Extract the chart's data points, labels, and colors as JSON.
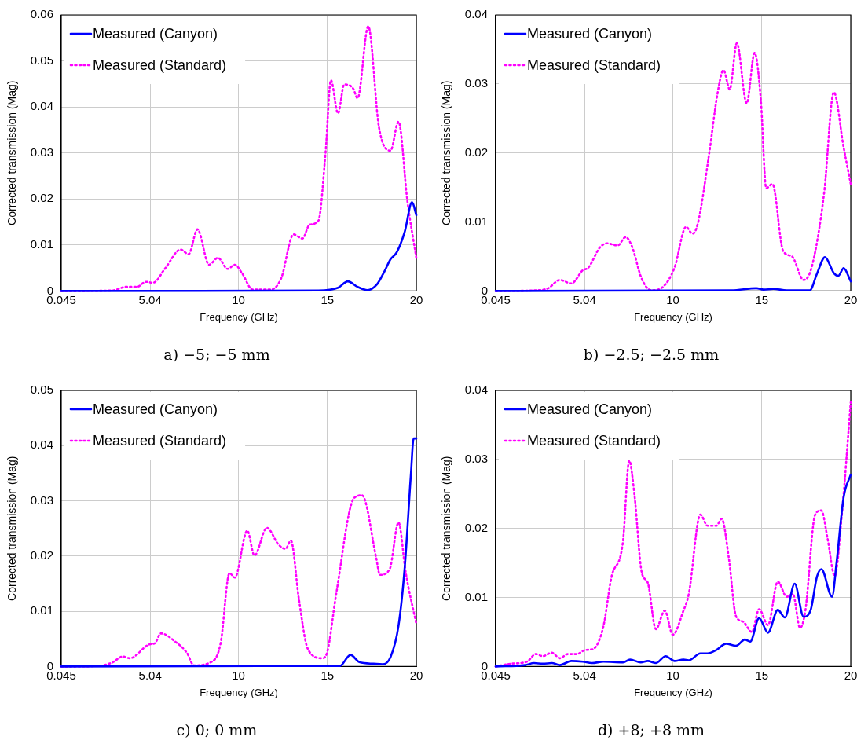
{
  "chart_data": [
    {
      "type": "line",
      "title": "a) −5; −5 mm",
      "xlabel": "Frequency (GHz)",
      "ylabel": "Corrected transmission (Mag)",
      "xlim": [
        0.045,
        20
      ],
      "xticks": [
        0.045,
        5.04,
        10,
        15,
        20
      ],
      "ylim": [
        0,
        0.06
      ],
      "yticks": [
        0,
        0.01,
        0.02,
        0.03,
        0.04,
        0.05,
        0.06
      ],
      "grid": true,
      "legend": "top left",
      "marker": "none",
      "series": [
        {
          "name": "Measured (Canyon)",
          "color": "#0000ff",
          "line_style": "solid",
          "x": [
            0.045,
            14.5,
            15.6,
            16.15,
            16.7,
            17.25,
            17.8,
            18.2,
            18.55,
            18.9,
            19.35,
            19.76,
            20
          ],
          "values": [
            0,
            0.0001,
            0.0007,
            0.0021,
            0.0009,
            0.0002,
            0.0015,
            0.0042,
            0.0069,
            0.0084,
            0.0129,
            0.0193,
            0.0165
          ]
        },
        {
          "name": "Measured (Standard)",
          "color": "#ff00ff",
          "line_style": "dotted",
          "x": [
            0.045,
            2.9,
            3.7,
            4.3,
            4.8,
            5.2,
            5.9,
            6.75,
            7.2,
            7.7,
            8.35,
            8.85,
            9.4,
            9.8,
            10.2,
            10.8,
            11.8,
            12.4,
            13.1,
            13.6,
            14.0,
            14.5,
            14.9,
            15.2,
            15.6,
            15.95,
            16.45,
            16.7,
            17.3,
            17.9,
            18.55,
            19.0,
            19.5,
            20
          ],
          "values": [
            0,
            0.0001,
            0.0009,
            0.0009,
            0.002,
            0.0018,
            0.005,
            0.009,
            0.008,
            0.0134,
            0.0057,
            0.0072,
            0.0048,
            0.0057,
            0.0039,
            0.0003,
            0.0003,
            0.0027,
            0.0123,
            0.0114,
            0.0144,
            0.0153,
            0.0302,
            0.0458,
            0.0386,
            0.0449,
            0.044,
            0.0419,
            0.0575,
            0.0356,
            0.0305,
            0.0368,
            0.0195,
            0.0072
          ]
        }
      ]
    },
    {
      "type": "line",
      "title": "b) −2.5; −2.5 mm",
      "xlabel": "Frequency (GHz)",
      "ylabel": "Corrected transmission (Mag)",
      "xlim": [
        0.045,
        20
      ],
      "xticks": [
        0.045,
        5.04,
        10,
        15,
        20
      ],
      "ylim": [
        0,
        0.04
      ],
      "yticks": [
        0,
        0.01,
        0.02,
        0.03,
        0.04
      ],
      "grid": true,
      "legend": "top left",
      "marker": "none",
      "series": [
        {
          "name": "Measured (Canyon)",
          "color": "#0000ff",
          "line_style": "solid",
          "x": [
            0.045,
            13.3,
            14.7,
            15.1,
            15.65,
            16.4,
            17.7,
            18.1,
            18.55,
            19.05,
            19.3,
            19.6,
            20
          ],
          "values": [
            0,
            0.0001,
            0.0004,
            0.0002,
            0.0003,
            0.0001,
            0.0001,
            0.0025,
            0.0049,
            0.0026,
            0.0022,
            0.0033,
            0.0014
          ]
        },
        {
          "name": "Measured (Standard)",
          "color": "#ff00ff",
          "line_style": "dotted",
          "x": [
            0.045,
            2.35,
            3.0,
            3.65,
            4.3,
            4.94,
            5.26,
            5.9,
            6.3,
            6.9,
            7.35,
            7.7,
            8.25,
            8.8,
            9.45,
            10.1,
            10.75,
            11.1,
            11.4,
            12.05,
            12.5,
            12.85,
            13.2,
            13.6,
            14.15,
            14.6,
            14.95,
            15.25,
            15.6,
            16.2,
            16.7,
            17.35,
            17.8,
            18.5,
            19.05,
            19.6,
            20
          ],
          "values": [
            0,
            0.0001,
            0.0004,
            0.0016,
            0.0011,
            0.003,
            0.0034,
            0.0063,
            0.0069,
            0.0066,
            0.0078,
            0.0065,
            0.0018,
            0.0001,
            0.0006,
            0.0034,
            0.0093,
            0.0083,
            0.0097,
            0.02,
            0.0284,
            0.032,
            0.0292,
            0.0359,
            0.0272,
            0.0345,
            0.0276,
            0.0149,
            0.0155,
            0.0058,
            0.005,
            0.0016,
            0.0034,
            0.0141,
            0.0288,
            0.0208,
            0.0155
          ]
        }
      ]
    },
    {
      "type": "line",
      "title": "c) 0; 0 mm",
      "xlabel": "Frequency (GHz)",
      "ylabel": "Corrected transmission (Mag)",
      "xlim": [
        0.045,
        20
      ],
      "xticks": [
        0.045,
        5.04,
        10,
        15,
        20
      ],
      "ylim": [
        0,
        0.05
      ],
      "yticks": [
        0,
        0.01,
        0.02,
        0.03,
        0.04,
        0.05
      ],
      "grid": true,
      "legend": "top left",
      "marker": "none",
      "series": [
        {
          "name": "Measured (Canyon)",
          "color": "#0000ff",
          "line_style": "solid",
          "x": [
            0.045,
            15.0,
            15.7,
            16.3,
            16.8,
            17.6,
            18.1,
            18.55,
            19.0,
            19.35,
            19.7,
            19.85,
            20
          ],
          "values": [
            0,
            0.0001,
            0.0001,
            0.0021,
            0.0008,
            0.0005,
            0.0004,
            0.0017,
            0.0074,
            0.018,
            0.035,
            0.0413,
            0.0413
          ]
        },
        {
          "name": "Measured (Standard)",
          "color": "#ff00ff",
          "line_style": "dotted",
          "x": [
            0.045,
            2.1,
            2.9,
            3.5,
            3.9,
            5.0,
            5.3,
            5.65,
            6.45,
            7.1,
            7.5,
            8.4,
            9.0,
            9.5,
            9.8,
            10.5,
            10.9,
            11.6,
            12.25,
            12.65,
            12.95,
            13.4,
            13.9,
            14.7,
            15.0,
            15.5,
            16.5,
            16.95,
            17.75,
            17.95,
            18.5,
            19.0,
            19.4,
            20
          ],
          "values": [
            0,
            0.0001,
            0.0007,
            0.0018,
            0.0015,
            0.004,
            0.0042,
            0.006,
            0.0045,
            0.0025,
            0.0002,
            0.0007,
            0.0042,
            0.0169,
            0.0161,
            0.0246,
            0.0201,
            0.0251,
            0.0221,
            0.0213,
            0.0228,
            0.0122,
            0.0032,
            0.0015,
            0.0027,
            0.0132,
            0.0305,
            0.031,
            0.0196,
            0.0166,
            0.0176,
            0.0261,
            0.0171,
            0.0077
          ]
        }
      ]
    },
    {
      "type": "line",
      "title": "d) +8; +8 mm",
      "xlabel": "Frequency (GHz)",
      "ylabel": "Corrected transmission (Mag)",
      "xlim": [
        0.045,
        20
      ],
      "xticks": [
        0.045,
        5.04,
        10,
        15,
        20
      ],
      "ylim": [
        0,
        0.04
      ],
      "yticks": [
        0,
        0.01,
        0.02,
        0.03,
        0.04
      ],
      "grid": true,
      "legend": "top left",
      "marker": "none",
      "series": [
        {
          "name": "Measured (Canyon)",
          "color": "#0000ff",
          "line_style": "solid",
          "x": [
            0.045,
            1.7,
            2.2,
            2.7,
            3.2,
            3.65,
            4.3,
            4.95,
            5.45,
            6.1,
            7.2,
            7.6,
            8.2,
            8.6,
            9.05,
            9.6,
            10.1,
            10.6,
            10.9,
            11.55,
            11.95,
            12.45,
            13.0,
            13.55,
            14.05,
            14.35,
            14.85,
            15.35,
            15.9,
            16.3,
            16.85,
            17.35,
            17.75,
            18.1,
            18.35,
            18.95,
            19.2,
            19.6,
            20
          ],
          "values": [
            0,
            0.0002,
            0.0005,
            0.0004,
            0.0005,
            0.0002,
            0.0008,
            0.0007,
            0.0005,
            0.0007,
            0.0006,
            0.001,
            0.0006,
            0.0008,
            0.0005,
            0.0015,
            0.0008,
            0.001,
            0.0009,
            0.0019,
            0.0019,
            0.0024,
            0.0033,
            0.003,
            0.0039,
            0.0036,
            0.007,
            0.0049,
            0.0082,
            0.0071,
            0.012,
            0.0072,
            0.0082,
            0.013,
            0.0141,
            0.0101,
            0.015,
            0.0245,
            0.0278
          ]
        },
        {
          "name": "Measured (Standard)",
          "color": "#ff00ff",
          "line_style": "dotted",
          "x": [
            0.045,
            0.9,
            1.8,
            2.3,
            2.7,
            3.2,
            3.65,
            4.1,
            4.6,
            5.1,
            5.5,
            6.1,
            6.55,
            7.2,
            7.55,
            7.85,
            8.25,
            8.6,
            9.05,
            9.55,
            10.0,
            10.6,
            10.9,
            11.55,
            11.95,
            12.45,
            12.75,
            13.15,
            13.55,
            13.95,
            14.45,
            14.85,
            15.35,
            15.9,
            16.4,
            16.75,
            17.15,
            17.45,
            18.0,
            18.35,
            18.7,
            19.1,
            19.5,
            20
          ],
          "values": [
            0,
            0.0004,
            0.0007,
            0.0018,
            0.0015,
            0.002,
            0.0012,
            0.0018,
            0.0018,
            0.0024,
            0.0025,
            0.0058,
            0.0129,
            0.0181,
            0.0298,
            0.0248,
            0.0137,
            0.0121,
            0.0054,
            0.0081,
            0.0046,
            0.0081,
            0.0105,
            0.022,
            0.0204,
            0.0204,
            0.0214,
            0.0157,
            0.0073,
            0.0065,
            0.005,
            0.0083,
            0.006,
            0.0123,
            0.0101,
            0.0105,
            0.0056,
            0.0081,
            0.022,
            0.0226,
            0.0185,
            0.0131,
            0.022,
            0.0383
          ]
        }
      ]
    }
  ]
}
